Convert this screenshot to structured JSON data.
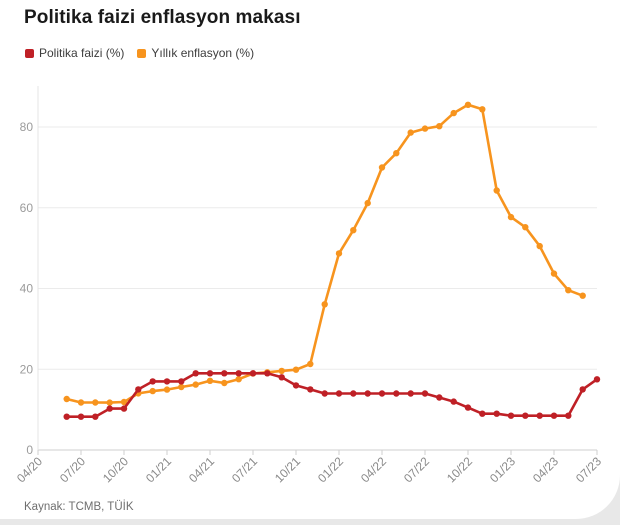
{
  "card": {
    "title": "Politika faizi enflasyon makası",
    "source": "Kaynak: TCMB, TÜİK"
  },
  "legend": [
    {
      "label": "Politika faizi (%)",
      "color": "#bf2026"
    },
    {
      "label": "Yıllık enflasyon (%)",
      "color": "#f7941e"
    }
  ],
  "chart_data": {
    "type": "line",
    "title": "Politika faizi enflasyon makası",
    "source": "Kaynak: TCMB, TÜİK",
    "x_unit": "month",
    "x_axis_start": "04/20",
    "x_axis_end": "07/23",
    "x_tick_labels": [
      "04/20",
      "07/20",
      "10/20",
      "01/21",
      "04/21",
      "07/21",
      "10/21",
      "01/22",
      "04/22",
      "07/22",
      "10/22",
      "01/23",
      "04/23",
      "07/23"
    ],
    "y_ticks": [
      0,
      20,
      40,
      60,
      80
    ],
    "ylim": [
      0,
      90
    ],
    "xlabel": "",
    "ylabel": "",
    "grid": "horizontal",
    "legend_position": "top-left",
    "series": [
      {
        "id": "politika-faizi",
        "name": "Politika faizi (%)",
        "color": "#bf2026",
        "x_start": "06/20",
        "x_end": "07/23",
        "x_offset_months": 2,
        "values": [
          8.25,
          8.25,
          8.25,
          10.25,
          10.25,
          15,
          17,
          17,
          17,
          19,
          19,
          19,
          19,
          19,
          19,
          18,
          16,
          15,
          14,
          14,
          14,
          14,
          14,
          14,
          14,
          14,
          13,
          12,
          10.5,
          9,
          9,
          8.5,
          8.5,
          8.5,
          8.5,
          8.5,
          15,
          17.5
        ]
      },
      {
        "id": "yillik-enflasyon",
        "name": "Yıllık enflasyon (%)",
        "color": "#f7941e",
        "x_start": "06/20",
        "x_end": "06/23",
        "x_offset_months": 2,
        "values": [
          12.62,
          11.76,
          11.77,
          11.75,
          11.89,
          14.03,
          14.6,
          14.97,
          15.61,
          16.19,
          17.14,
          16.59,
          17.53,
          18.95,
          19.25,
          19.58,
          19.89,
          21.31,
          36.08,
          48.69,
          54.44,
          61.14,
          69.97,
          73.5,
          78.62,
          79.6,
          80.21,
          83.45,
          85.51,
          84.39,
          64.27,
          57.68,
          55.18,
          50.51,
          43.68,
          39.59,
          38.21
        ]
      }
    ]
  }
}
